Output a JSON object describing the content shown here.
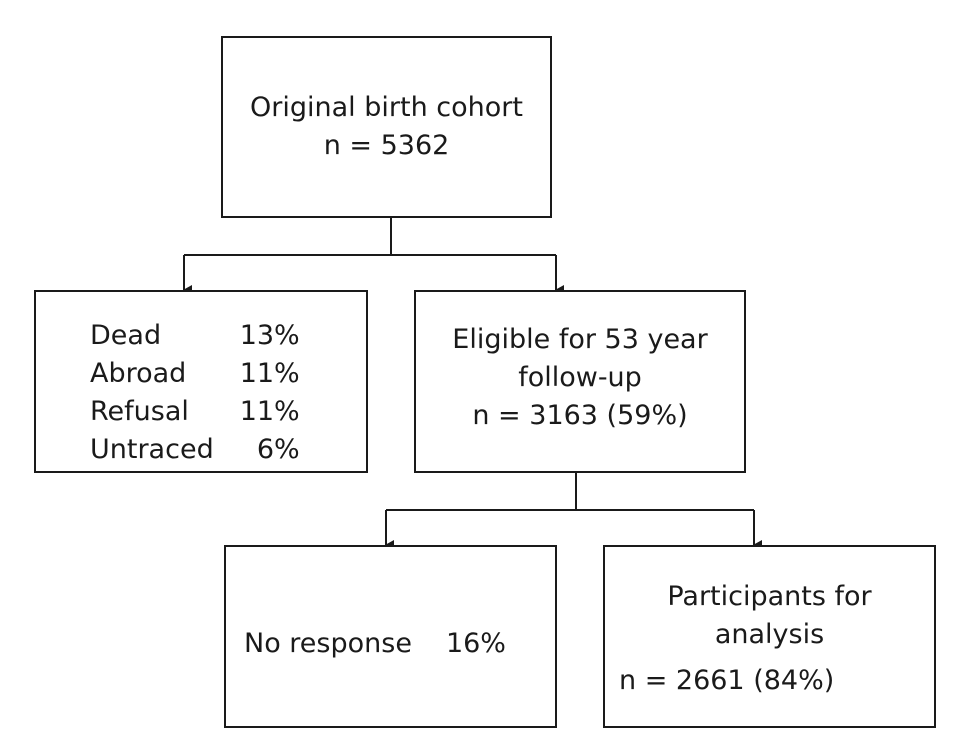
{
  "flowchart": {
    "root": {
      "title": "Original birth cohort",
      "count": "n = 5362"
    },
    "excluded": {
      "rows": [
        {
          "label": "Dead",
          "pct": "13%"
        },
        {
          "label": "Abroad",
          "pct": "11%"
        },
        {
          "label": "Refusal",
          "pct": "11%"
        },
        {
          "label": "Untraced",
          "pct": "6%"
        }
      ]
    },
    "eligible": {
      "line1": "Eligible for 53 year",
      "line2": "follow-up",
      "count": "n = 3163 (59%)"
    },
    "no_response": {
      "label": "No response",
      "pct": "16%"
    },
    "participants": {
      "line1": "Participants for",
      "line2": "analysis",
      "count": "n = 2661 (84%)"
    }
  },
  "colors": {
    "line": "#1a1a1a",
    "background": "#ffffff"
  }
}
